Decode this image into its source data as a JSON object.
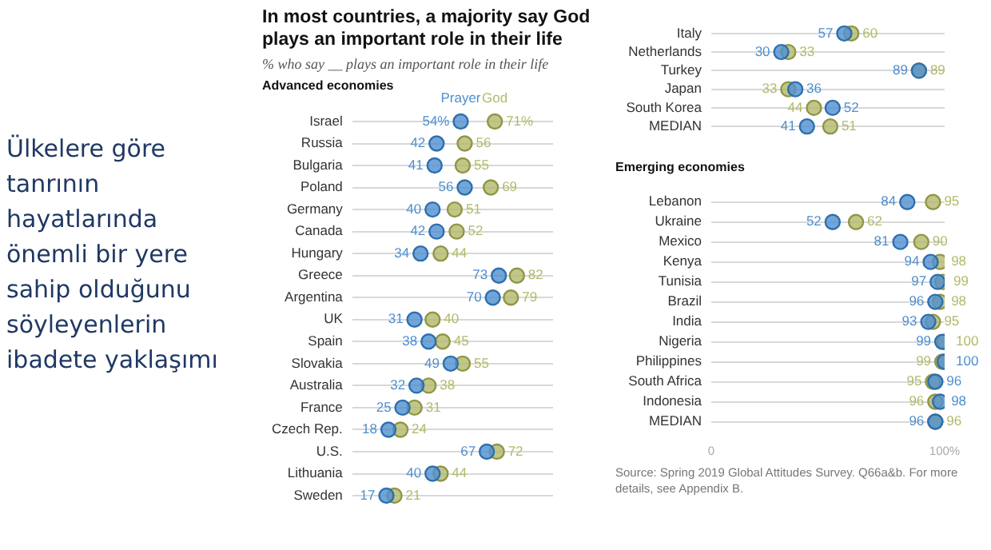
{
  "chart_data": [
    {
      "type": "other",
      "title": "Ülkelere göre\ntanrının\nhayatlarında\nönemli bir yere\nsahip olduğunu\nsöyleyenlerin\nibadete yaklaşımı"
    },
    {
      "type": "scatter",
      "orientation": "horizontal",
      "title": "In most countries, a majority say God plays an important role in their life",
      "subtitle": "% who say __ plays an important role in their life",
      "annotations": [
        "Advanced economies"
      ],
      "legend": "top",
      "marker": "circle",
      "grid": "y",
      "tick_labels": "y",
      "xlim": [
        0,
        100
      ],
      "categories": [
        "Israel",
        "Russia",
        "Bulgaria",
        "Poland",
        "Germany",
        "Canada",
        "Hungary",
        "Greece",
        "Argentina",
        "UK",
        "Spain",
        "Slovakia",
        "Australia",
        "France",
        "Czech Rep.",
        "U.S.",
        "Lithuania",
        "Sweden"
      ],
      "series": [
        {
          "name": "Prayer",
          "color": "#4f8fcf",
          "values": [
            54,
            42,
            41,
            56,
            40,
            42,
            34,
            73,
            70,
            31,
            38,
            49,
            32,
            25,
            18,
            67,
            40,
            17
          ],
          "value_labels": [
            "54%",
            "42",
            "41",
            "56",
            "40",
            "42",
            "34",
            "73",
            "70",
            "31",
            "38",
            "49",
            "32",
            "25",
            "18",
            "67",
            "40",
            "17"
          ]
        },
        {
          "name": "God",
          "color": "#b3b96a",
          "values": [
            71,
            56,
            55,
            69,
            51,
            52,
            44,
            82,
            79,
            40,
            45,
            55,
            38,
            31,
            24,
            72,
            44,
            21
          ],
          "value_labels": [
            "71%",
            "56",
            "55",
            "69",
            "51",
            "52",
            "44",
            "82",
            "79",
            "40",
            "45",
            "55",
            "38",
            "31",
            "24",
            "72",
            "44",
            "21"
          ]
        }
      ]
    },
    {
      "type": "scatter",
      "orientation": "horizontal",
      "marker": "circle",
      "grid": "y",
      "tick_labels": "y",
      "xlim": [
        0,
        100
      ],
      "categories": [
        "Italy",
        "Netherlands",
        "Turkey",
        "Japan",
        "South Korea",
        "MEDIAN"
      ],
      "series": [
        {
          "color": "#4f8fcf",
          "values": [
            57,
            30,
            89,
            36,
            52,
            41
          ],
          "value_labels": [
            "57",
            "30",
            "89",
            "36",
            "52",
            "41"
          ]
        },
        {
          "color": "#b3b96a",
          "values": [
            60,
            33,
            89,
            33,
            44,
            51
          ],
          "value_labels": [
            "60",
            "33",
            "89",
            "33",
            "44",
            "51"
          ]
        }
      ]
    },
    {
      "type": "scatter",
      "orientation": "horizontal",
      "title": "Emerging economies",
      "annotations": [
        "Source: Spring 2019 Global Attitudes Survey. Q66a&b. For more details, see Appendix B."
      ],
      "marker": "circle",
      "grid": "y",
      "xlim": [
        0,
        100
      ],
      "xticks": [
        {
          "value": 0,
          "label": "0"
        },
        {
          "value": 100,
          "label": "100%"
        }
      ],
      "categories": [
        "Lebanon",
        "Ukraine",
        "Mexico",
        "Kenya",
        "Tunisia",
        "Brazil",
        "India",
        "Nigeria",
        "Philippines",
        "South Africa",
        "Indonesia",
        "MEDIAN"
      ],
      "series": [
        {
          "color": "#4f8fcf",
          "values": [
            84,
            52,
            81,
            94,
            97,
            96,
            93,
            99,
            100,
            96,
            98,
            96
          ],
          "value_labels": [
            "84",
            "52",
            "81",
            "94",
            "97",
            "96",
            "93",
            "99",
            "100",
            "96",
            "98",
            "96"
          ]
        },
        {
          "color": "#b3b96a",
          "values": [
            95,
            62,
            90,
            98,
            99,
            98,
            95,
            100,
            99,
            95,
            96,
            96
          ],
          "value_labels": [
            "95",
            "62",
            "90",
            "98",
            "99",
            "98",
            "95",
            "100",
            "99",
            "95",
            "96",
            "96"
          ]
        }
      ]
    }
  ]
}
